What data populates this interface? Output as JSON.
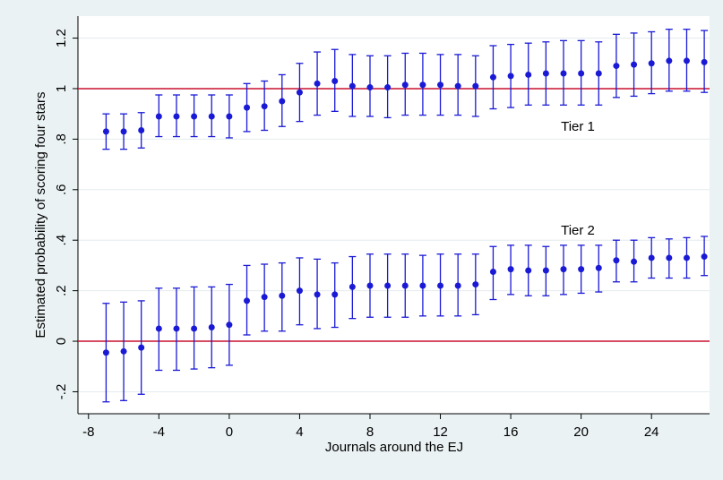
{
  "chart_data": {
    "type": "errorbar",
    "x_label": "Journals around the EJ",
    "y_label": "Estimated probability of scoring four stars",
    "x": [
      -7,
      -6,
      -5,
      -4,
      -3,
      -2,
      -1,
      0,
      1,
      2,
      3,
      4,
      5,
      6,
      7,
      8,
      9,
      10,
      11,
      12,
      13,
      14,
      15,
      16,
      17,
      18,
      19,
      20,
      21,
      22,
      23,
      24,
      25,
      26,
      27
    ],
    "series": [
      {
        "name": "Tier 1",
        "color": "#1a1ad6",
        "values": [
          0.83,
          0.83,
          0.835,
          0.89,
          0.89,
          0.89,
          0.89,
          0.89,
          0.925,
          0.93,
          0.95,
          0.985,
          1.02,
          1.03,
          1.01,
          1.005,
          1.005,
          1.015,
          1.015,
          1.015,
          1.01,
          1.01,
          1.045,
          1.05,
          1.055,
          1.06,
          1.06,
          1.06,
          1.06,
          1.09,
          1.095,
          1.1,
          1.11,
          1.11,
          1.105
        ],
        "lower": [
          0.76,
          0.76,
          0.765,
          0.81,
          0.81,
          0.81,
          0.81,
          0.805,
          0.83,
          0.835,
          0.85,
          0.87,
          0.895,
          0.91,
          0.89,
          0.89,
          0.885,
          0.895,
          0.895,
          0.895,
          0.895,
          0.89,
          0.92,
          0.925,
          0.935,
          0.935,
          0.935,
          0.935,
          0.935,
          0.965,
          0.97,
          0.98,
          0.99,
          0.99,
          0.985
        ],
        "upper": [
          0.9,
          0.9,
          0.905,
          0.975,
          0.975,
          0.975,
          0.975,
          0.975,
          1.02,
          1.03,
          1.055,
          1.1,
          1.145,
          1.155,
          1.135,
          1.13,
          1.13,
          1.14,
          1.14,
          1.135,
          1.135,
          1.13,
          1.17,
          1.175,
          1.18,
          1.185,
          1.19,
          1.19,
          1.185,
          1.215,
          1.22,
          1.225,
          1.235,
          1.235,
          1.23
        ]
      },
      {
        "name": "Tier 2",
        "color": "#1a1ad6",
        "values": [
          -0.045,
          -0.04,
          -0.025,
          0.05,
          0.05,
          0.05,
          0.055,
          0.065,
          0.16,
          0.175,
          0.18,
          0.2,
          0.185,
          0.185,
          0.215,
          0.22,
          0.22,
          0.22,
          0.22,
          0.22,
          0.22,
          0.225,
          0.275,
          0.285,
          0.28,
          0.28,
          0.285,
          0.285,
          0.29,
          0.32,
          0.315,
          0.33,
          0.33,
          0.33,
          0.335
        ],
        "lower": [
          -0.24,
          -0.235,
          -0.21,
          -0.115,
          -0.115,
          -0.11,
          -0.105,
          -0.095,
          0.025,
          0.04,
          0.04,
          0.065,
          0.05,
          0.055,
          0.09,
          0.095,
          0.095,
          0.095,
          0.1,
          0.1,
          0.1,
          0.105,
          0.165,
          0.185,
          0.18,
          0.18,
          0.185,
          0.19,
          0.195,
          0.235,
          0.235,
          0.25,
          0.25,
          0.25,
          0.26
        ],
        "upper": [
          0.15,
          0.155,
          0.16,
          0.21,
          0.21,
          0.215,
          0.215,
          0.225,
          0.3,
          0.305,
          0.31,
          0.33,
          0.325,
          0.31,
          0.335,
          0.345,
          0.345,
          0.345,
          0.34,
          0.345,
          0.345,
          0.345,
          0.375,
          0.38,
          0.38,
          0.375,
          0.38,
          0.38,
          0.38,
          0.4,
          0.4,
          0.41,
          0.405,
          0.41,
          0.415
        ]
      }
    ],
    "reference_lines": {
      "color": "#c8102e",
      "values": [
        1,
        0
      ]
    },
    "xlim": [
      -8.6,
      27.3
    ],
    "xticks": [
      -8,
      -4,
      0,
      4,
      8,
      12,
      16,
      20,
      24
    ],
    "ylim": [
      -0.287,
      1.287
    ],
    "yticks": [
      {
        "value": -0.2,
        "label": "-.2"
      },
      0,
      {
        "value": 0.2,
        "label": ".2"
      },
      {
        "value": 0.4,
        "label": ".4"
      },
      {
        "value": 0.6,
        "label": ".6"
      },
      {
        "value": 0.8,
        "label": ".8"
      },
      1,
      {
        "value": 1.2,
        "label": "1.2"
      }
    ],
    "grid": true
  }
}
